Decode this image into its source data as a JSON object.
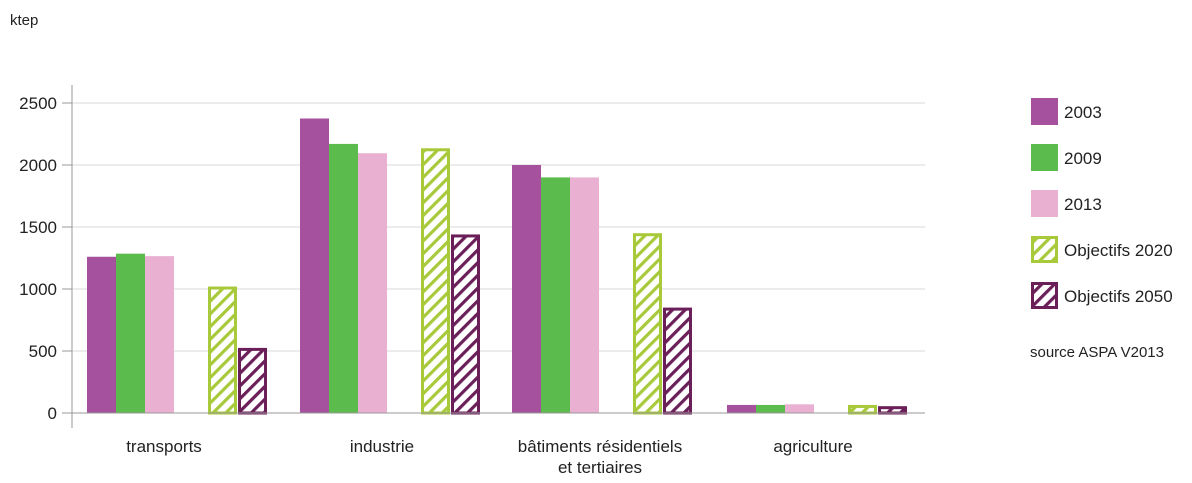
{
  "chart_data": {
    "type": "bar",
    "unit_label": "ktep",
    "categories": [
      [
        "transports"
      ],
      [
        "industrie"
      ],
      [
        "bâtiments résidentiels",
        "et tertiaires"
      ],
      [
        "agriculture"
      ]
    ],
    "series": [
      {
        "name": "2003",
        "values": [
          1260,
          2375,
          2000,
          65
        ],
        "color": "#a6519e",
        "pattern": "solid"
      },
      {
        "name": "2009",
        "values": [
          1285,
          2170,
          1900,
          65
        ],
        "color": "#5bbb4c",
        "pattern": "solid"
      },
      {
        "name": "2013",
        "values": [
          1265,
          2095,
          1900,
          70
        ],
        "color": "#e9b0d2",
        "pattern": "solid"
      },
      {
        "name": "Objectifs 2020",
        "values": [
          1020,
          2135,
          1450,
          65
        ],
        "color": "#a8c93a",
        "pattern": "hatch"
      },
      {
        "name": "Objectifs 2050",
        "values": [
          525,
          1440,
          850,
          55
        ],
        "color": "#6b1f59",
        "pattern": "hatch"
      }
    ],
    "ylim": [
      0,
      2500
    ],
    "yticks": [
      0,
      500,
      1000,
      1500,
      2000,
      2500
    ],
    "grid": true,
    "legend_position": "right",
    "source_note": "source ASPA V2013"
  }
}
